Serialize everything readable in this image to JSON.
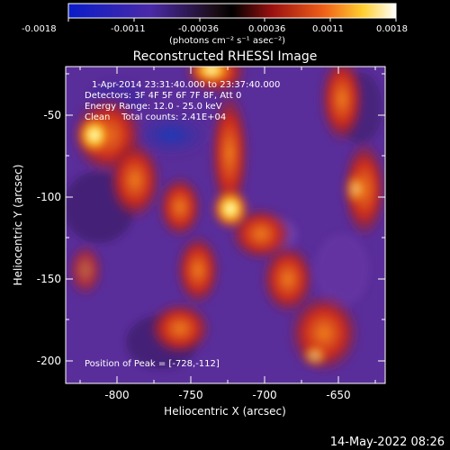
{
  "colorbar": {
    "tick_labels": [
      "-0.0018",
      "-0.0011",
      "-0.00036",
      "0.00036",
      "0.0011",
      "0.0018"
    ],
    "units": "(photons cm⁻² s⁻¹ asec⁻²)"
  },
  "title": "Reconstructed RHESSI Image",
  "info": {
    "time_range": "1-Apr-2014 23:31:40.000 to 23:37:40.000",
    "detectors": "Detectors: 3F 4F 5F 6F 7F 8F, Att 0",
    "energy": "Energy Range: 12.0 - 25.0 keV",
    "method": "Clean    Total counts: 2.41E+04",
    "peak": "Position of Peak = [-728,-112]"
  },
  "axes": {
    "xlabel": "Heliocentric X (arcsec)",
    "ylabel": "Heliocentric Y (arcsec)",
    "x_ticks": [
      "-800",
      "-750",
      "-700",
      "-650"
    ],
    "y_ticks": [
      "-50",
      "-100",
      "-150",
      "-200"
    ]
  },
  "footer_date": "14-May-2022 08:26",
  "colors": {
    "bg": "#000000",
    "violet": "#5a2e9a",
    "deep_blue": "#1a3ab8",
    "red": "#c8281a",
    "orange": "#f07818",
    "yellow": "#ffe640",
    "white": "#ffffff"
  }
}
